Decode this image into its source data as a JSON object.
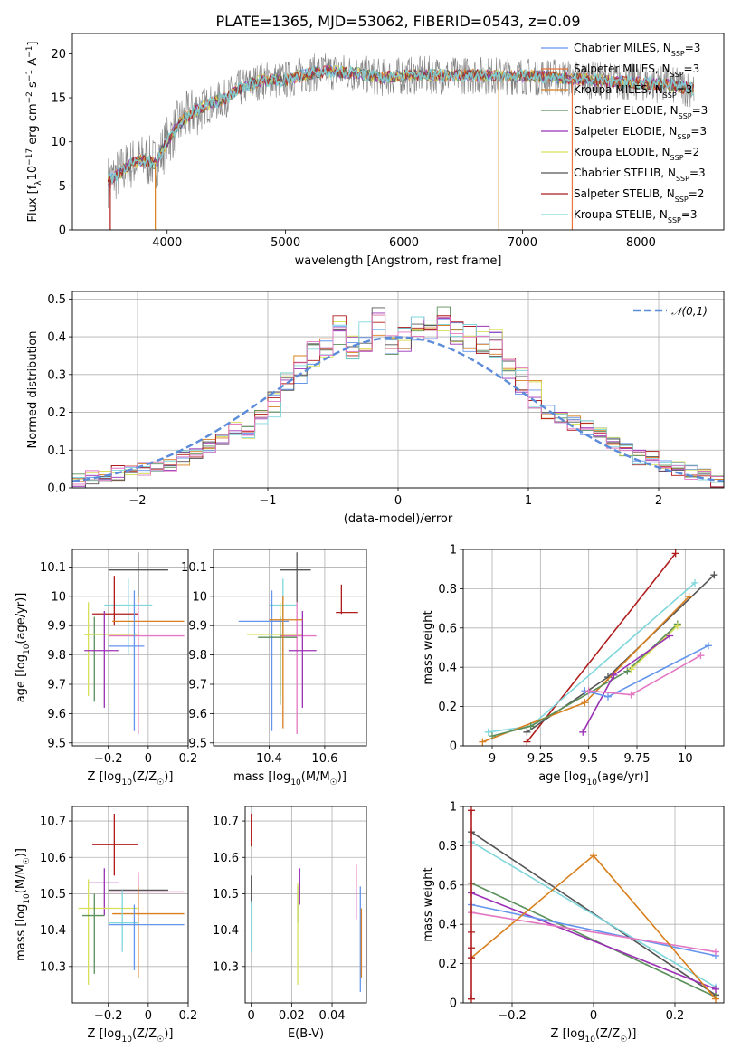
{
  "chart_data": [
    {
      "id": "spectrum",
      "type": "line",
      "title": "PLATE=1365, MJD=53062, FIBERID=0543, z=0.09",
      "xlabel": "wavelength [Angstrom, rest frame]",
      "ylabel": "Flux [f_λ10^-17 erg cm^-2 s^-1 A^-1]",
      "xlim": [
        3200,
        8700
      ],
      "ylim": [
        0,
        22.3
      ],
      "xticks": [
        4000,
        5000,
        6000,
        7000,
        8000
      ],
      "yticks": [
        0,
        5,
        10,
        15,
        20
      ],
      "grid": false,
      "legend_position": "right",
      "continuum_x": [
        3500,
        3600,
        3700,
        3800,
        3900,
        4000,
        4100,
        4200,
        4300,
        4400,
        4500,
        4600,
        4700,
        4800,
        4900,
        5000,
        5200,
        5400,
        5600,
        5800,
        6000,
        6200,
        6400,
        6600,
        6800,
        7000,
        7200,
        7400,
        7600,
        7800,
        8000,
        8200,
        8450
      ],
      "continuum_y": [
        5.5,
        6.5,
        7.5,
        8.0,
        7.5,
        10.0,
        12.0,
        13.2,
        14.0,
        14.5,
        15.0,
        16.0,
        16.5,
        17.0,
        17.0,
        17.0,
        17.8,
        18.0,
        17.8,
        17.3,
        17.5,
        17.6,
        17.5,
        17.6,
        17.5,
        17.5,
        17.4,
        17.2,
        17.0,
        16.8,
        16.7,
        16.5,
        16.0
      ],
      "series": [
        {
          "name": "Chabrier MILES, N_SSP=3",
          "color": "#6495ed"
        },
        {
          "name": "Salpeter MILES, N_SSP=3",
          "color": "#e8743b"
        },
        {
          "name": "Kroupa MILES, N_SSP=3",
          "color": "#d97f1e"
        },
        {
          "name": "Chabrier ELODIE, N_SSP=3",
          "color": "#5a8f5a"
        },
        {
          "name": "Salpeter ELODIE, N_SSP=3",
          "color": "#9b30b5"
        },
        {
          "name": "Kroupa ELODIE, N_SSP=2",
          "color": "#d8e05a"
        },
        {
          "name": "Chabrier STELIB, N_SSP=3",
          "color": "#555555"
        },
        {
          "name": "Salpeter STELIB, N_SSP=2",
          "color": "#b01c1c"
        },
        {
          "name": "Kroupa STELIB, N_SSP=3",
          "color": "#7fd6dc"
        }
      ]
    },
    {
      "id": "residuals",
      "type": "line",
      "xlabel": "(data-model)/error",
      "ylabel": "Normed distribution",
      "xlim": [
        -2.5,
        2.5
      ],
      "ylim": [
        0,
        0.52
      ],
      "xticks": [
        -2,
        -1,
        0,
        1,
        2
      ],
      "yticks": [
        0.0,
        0.1,
        0.2,
        0.3,
        0.4,
        0.5
      ],
      "grid": true,
      "legend_position": "top-right",
      "legend": [
        "𝒩(0,1)"
      ],
      "gaussian_color": "#5b8bd9",
      "bin_width": 0.1,
      "hist_x": [
        -2.5,
        -2.4,
        -2.3,
        -2.2,
        -2.1,
        -2.0,
        -1.9,
        -1.8,
        -1.7,
        -1.6,
        -1.5,
        -1.4,
        -1.3,
        -1.2,
        -1.1,
        -1.0,
        -0.9,
        -0.8,
        -0.7,
        -0.6,
        -0.5,
        -0.4,
        -0.3,
        -0.2,
        -0.1,
        0.0,
        0.1,
        0.2,
        0.3,
        0.4,
        0.5,
        0.6,
        0.7,
        0.8,
        0.9,
        1.0,
        1.1,
        1.2,
        1.3,
        1.4,
        1.5,
        1.6,
        1.7,
        1.8,
        1.9,
        2.0,
        2.1,
        2.2,
        2.3,
        2.4
      ],
      "hist_y": [
        0.02,
        0.03,
        0.03,
        0.04,
        0.04,
        0.05,
        0.05,
        0.06,
        0.08,
        0.09,
        0.11,
        0.13,
        0.16,
        0.15,
        0.19,
        0.22,
        0.27,
        0.31,
        0.35,
        0.37,
        0.42,
        0.38,
        0.4,
        0.44,
        0.37,
        0.4,
        0.43,
        0.42,
        0.44,
        0.42,
        0.4,
        0.39,
        0.38,
        0.31,
        0.28,
        0.25,
        0.2,
        0.18,
        0.17,
        0.16,
        0.15,
        0.12,
        0.1,
        0.08,
        0.08,
        0.06,
        0.05,
        0.04,
        0.03,
        0.02
      ]
    },
    {
      "id": "age-vs-Z",
      "type": "scatter",
      "xlabel": "Z [log10(Z/Z☉)]",
      "ylabel": "age  [log10(age/yr)]",
      "xlim": [
        -0.38,
        0.2
      ],
      "ylim": [
        9.49,
        10.16
      ],
      "xticks": [
        -0.2,
        0.0,
        0.2
      ],
      "yticks": [
        9.5,
        9.6,
        9.7,
        9.8,
        9.9,
        10.0,
        10.1
      ],
      "grid": true,
      "points": [
        {
          "c": "#555555",
          "x": -0.05,
          "xe": [
            -0.2,
            0.1
          ],
          "y": 10.09,
          "ye": [
            9.98,
            10.15
          ]
        },
        {
          "c": "#7fd6dc",
          "x": -0.1,
          "xe": [
            -0.22,
            0.02
          ],
          "y": 9.97,
          "ye": [
            9.8,
            10.06
          ]
        },
        {
          "c": "#b01c1c",
          "x": -0.17,
          "xe": [
            -0.28,
            -0.05
          ],
          "y": 9.94,
          "ye": [
            9.9,
            10.07
          ]
        },
        {
          "c": "#d97f1e",
          "x": -0.05,
          "xe": [
            -0.18,
            0.18
          ],
          "y": 9.915,
          "ye": [
            9.55,
            10.0
          ]
        },
        {
          "c": "#5a8f5a",
          "x": -0.27,
          "xe": [
            -0.32,
            -0.22
          ],
          "y": 9.87,
          "ye": [
            9.64,
            9.93
          ]
        },
        {
          "c": "#d8e05a",
          "x": -0.3,
          "xe": [
            -0.32,
            -0.05
          ],
          "y": 9.87,
          "ye": [
            9.66,
            9.98
          ]
        },
        {
          "c": "#e377c2",
          "x": -0.05,
          "xe": [
            -0.2,
            0.18
          ],
          "y": 9.865,
          "ye": [
            9.53,
            9.98
          ]
        },
        {
          "c": "#9b30b5",
          "x": -0.22,
          "xe": [
            -0.32,
            -0.15
          ],
          "y": 9.815,
          "ye": [
            9.62,
            9.95
          ]
        },
        {
          "c": "#6495ed",
          "x": -0.07,
          "xe": [
            -0.2,
            -0.02
          ],
          "y": 9.83,
          "ye": [
            9.54,
            10.02
          ]
        }
      ]
    },
    {
      "id": "age-vs-mass",
      "type": "scatter",
      "xlabel": "mass [log10(M/M☉)]",
      "ylabel": "",
      "xlim": [
        10.2,
        10.75
      ],
      "ylim": [
        9.49,
        10.16
      ],
      "xticks": [
        10.4,
        10.6
      ],
      "yticks": [
        9.5,
        9.6,
        9.7,
        9.8,
        9.9,
        10.0,
        10.1
      ],
      "grid": true,
      "points": [
        {
          "c": "#555555",
          "x": 10.5,
          "xe": [
            10.44,
            10.55
          ],
          "y": 10.09,
          "ye": [
            9.98,
            10.15
          ]
        },
        {
          "c": "#7fd6dc",
          "x": 10.45,
          "xe": [
            10.4,
            10.5
          ],
          "y": 9.97,
          "ye": [
            9.8,
            10.06
          ]
        },
        {
          "c": "#b01c1c",
          "x": 10.66,
          "xe": [
            10.64,
            10.72
          ],
          "y": 9.945,
          "ye": [
            9.94,
            10.04
          ]
        },
        {
          "c": "#6495ed",
          "x": 10.41,
          "xe": [
            10.29,
            10.47
          ],
          "y": 9.915,
          "ye": [
            9.54,
            10.02
          ]
        },
        {
          "c": "#d8e05a",
          "x": 10.44,
          "xe": [
            10.32,
            10.52
          ],
          "y": 9.87,
          "ye": [
            9.66,
            9.98
          ]
        },
        {
          "c": "#e377c2",
          "x": 10.5,
          "xe": [
            10.44,
            10.57
          ],
          "y": 9.865,
          "ye": [
            9.53,
            9.98
          ]
        },
        {
          "c": "#5a8f5a",
          "x": 10.44,
          "xe": [
            10.36,
            10.5
          ],
          "y": 9.86,
          "ye": [
            9.63,
            9.93
          ]
        },
        {
          "c": "#9b30b5",
          "x": 10.52,
          "xe": [
            10.47,
            10.57
          ],
          "y": 9.815,
          "ye": [
            9.62,
            9.95
          ]
        },
        {
          "c": "#d97f1e",
          "x": 10.45,
          "xe": [
            10.4,
            10.52
          ],
          "y": 9.92,
          "ye": [
            9.55,
            10.0
          ]
        }
      ]
    },
    {
      "id": "weight-vs-age",
      "type": "line",
      "xlabel": "age  [log10(age/yr)]",
      "ylabel": "mass weight",
      "xlim": [
        8.85,
        10.2
      ],
      "ylim": [
        0.0,
        1.0
      ],
      "xticks": [
        9.0,
        9.25,
        9.5,
        9.75,
        10.0
      ],
      "yticks": [
        0.0,
        0.2,
        0.4,
        0.6,
        0.8,
        1.0
      ],
      "grid": true,
      "series": [
        {
          "c": "#b01c1c",
          "x": [
            9.18,
            9.95
          ],
          "y": [
            0.02,
            0.98
          ]
        },
        {
          "c": "#7fd6dc",
          "x": [
            8.98,
            9.2,
            10.05
          ],
          "y": [
            0.07,
            0.1,
            0.83
          ]
        },
        {
          "c": "#555555",
          "x": [
            9.18,
            9.6,
            10.15
          ],
          "y": [
            0.07,
            0.35,
            0.87
          ]
        },
        {
          "c": "#d97f1e",
          "x": [
            8.95,
            9.48,
            10.02
          ],
          "y": [
            0.02,
            0.22,
            0.76
          ]
        },
        {
          "c": "#5a8f5a",
          "x": [
            9.0,
            9.2,
            9.7,
            9.96
          ],
          "y": [
            0.05,
            0.1,
            0.38,
            0.62
          ]
        },
        {
          "c": "#d8e05a",
          "x": [
            9.72,
            9.96
          ],
          "y": [
            0.39,
            0.61
          ]
        },
        {
          "c": "#9b30b5",
          "x": [
            9.47,
            9.63,
            9.92
          ],
          "y": [
            0.07,
            0.36,
            0.56
          ]
        },
        {
          "c": "#6495ed",
          "x": [
            9.48,
            9.6,
            10.12
          ],
          "y": [
            0.28,
            0.25,
            0.51
          ]
        },
        {
          "c": "#e377c2",
          "x": [
            9.5,
            9.72,
            10.08
          ],
          "y": [
            0.28,
            0.26,
            0.46
          ]
        }
      ]
    },
    {
      "id": "mass-vs-Z",
      "type": "scatter",
      "xlabel": "Z [log10(Z/Z☉)]",
      "ylabel": "mass [log10(M/M☉)]",
      "xlim": [
        -0.38,
        0.2
      ],
      "ylim": [
        10.2,
        10.74
      ],
      "xticks": [
        -0.2,
        0.0,
        0.2
      ],
      "yticks": [
        10.3,
        10.4,
        10.5,
        10.6,
        10.7
      ],
      "grid": true,
      "points": [
        {
          "c": "#b01c1c",
          "x": -0.17,
          "xe": [
            -0.28,
            -0.05
          ],
          "y": 10.635,
          "ye": [
            10.55,
            10.72
          ]
        },
        {
          "c": "#9b30b5",
          "x": -0.22,
          "xe": [
            -0.3,
            -0.15
          ],
          "y": 10.53,
          "ye": [
            10.44,
            10.57
          ]
        },
        {
          "c": "#555555",
          "x": -0.05,
          "xe": [
            -0.2,
            0.1
          ],
          "y": 10.51,
          "ye": [
            10.44,
            10.55
          ]
        },
        {
          "c": "#e377c2",
          "x": -0.05,
          "xe": [
            -0.2,
            0.18
          ],
          "y": 10.505,
          "ye": [
            10.43,
            10.56
          ]
        },
        {
          "c": "#d8e05a",
          "x": -0.3,
          "xe": [
            -0.35,
            -0.05
          ],
          "y": 10.46,
          "ye": [
            10.25,
            10.54
          ]
        },
        {
          "c": "#d97f1e",
          "x": -0.05,
          "xe": [
            -0.18,
            0.18
          ],
          "y": 10.445,
          "ye": [
            10.27,
            10.52
          ]
        },
        {
          "c": "#5a8f5a",
          "x": -0.27,
          "xe": [
            -0.33,
            -0.22
          ],
          "y": 10.44,
          "ye": [
            10.28,
            10.5
          ]
        },
        {
          "c": "#7fd6dc",
          "x": -0.13,
          "xe": [
            -0.2,
            -0.05
          ],
          "y": 10.42,
          "ye": [
            10.34,
            10.51
          ]
        },
        {
          "c": "#6495ed",
          "x": -0.07,
          "xe": [
            -0.2,
            0.18
          ],
          "y": 10.415,
          "ye": [
            10.29,
            10.47
          ]
        }
      ]
    },
    {
      "id": "mass-vs-EBV",
      "type": "scatter",
      "xlabel": "E(B-V)",
      "ylabel": "",
      "xlim": [
        -0.003,
        0.057
      ],
      "ylim": [
        10.2,
        10.74
      ],
      "xticks": [
        0.0,
        0.02,
        0.04
      ],
      "yticks": [
        10.3,
        10.4,
        10.5,
        10.6,
        10.7
      ],
      "grid": true,
      "points": [
        {
          "c": "#b01c1c",
          "x": 0.0,
          "ye": [
            10.63,
            10.72
          ]
        },
        {
          "c": "#555555",
          "x": 0.0,
          "ye": [
            10.47,
            10.55
          ]
        },
        {
          "c": "#7fd6dc",
          "x": 0.0,
          "ye": [
            10.34,
            10.48
          ]
        },
        {
          "c": "#9b30b5",
          "x": 0.024,
          "ye": [
            10.47,
            10.57
          ]
        },
        {
          "c": "#5a8f5a",
          "x": 0.023,
          "ye": [
            10.42,
            10.52
          ]
        },
        {
          "c": "#d8e05a",
          "x": 0.023,
          "ye": [
            10.25,
            10.53
          ]
        },
        {
          "c": "#e377c2",
          "x": 0.052,
          "ye": [
            10.43,
            10.58
          ]
        },
        {
          "c": "#6495ed",
          "x": 0.054,
          "ye": [
            10.23,
            10.52
          ]
        },
        {
          "c": "#d97f1e",
          "x": 0.0545,
          "ye": [
            10.27,
            10.46
          ]
        }
      ]
    },
    {
      "id": "weight-vs-Z",
      "type": "line",
      "xlabel": "Z [log10(Z/Z☉)]",
      "ylabel": "mass weight",
      "xlim": [
        -0.32,
        0.32
      ],
      "ylim": [
        0.0,
        1.0
      ],
      "xticks": [
        -0.2,
        0.0,
        0.2
      ],
      "yticks": [
        0.0,
        0.2,
        0.4,
        0.6,
        0.8,
        1.0
      ],
      "grid": true,
      "series": [
        {
          "c": "#555555",
          "x": [
            -0.3,
            0.3
          ],
          "y": [
            0.87,
            0.04
          ]
        },
        {
          "c": "#7fd6dc",
          "x": [
            -0.3,
            0.3
          ],
          "y": [
            0.82,
            0.08
          ]
        },
        {
          "c": "#5a8f5a",
          "x": [
            -0.3,
            0.3
          ],
          "y": [
            0.61,
            0.03
          ]
        },
        {
          "c": "#9b30b5",
          "x": [
            -0.3,
            0.3
          ],
          "y": [
            0.56,
            0.07
          ]
        },
        {
          "c": "#6495ed",
          "x": [
            -0.3,
            0.3
          ],
          "y": [
            0.5,
            0.24
          ]
        },
        {
          "c": "#e377c2",
          "x": [
            -0.3,
            0.3
          ],
          "y": [
            0.46,
            0.26
          ]
        },
        {
          "c": "#d97f1e",
          "x": [
            -0.3,
            0.0,
            0.3
          ],
          "y": [
            0.23,
            0.75,
            0.02
          ]
        },
        {
          "c": "#b01c1c",
          "x": [
            -0.3,
            -0.3
          ],
          "y": [
            0.02,
            0.98
          ]
        }
      ]
    }
  ]
}
